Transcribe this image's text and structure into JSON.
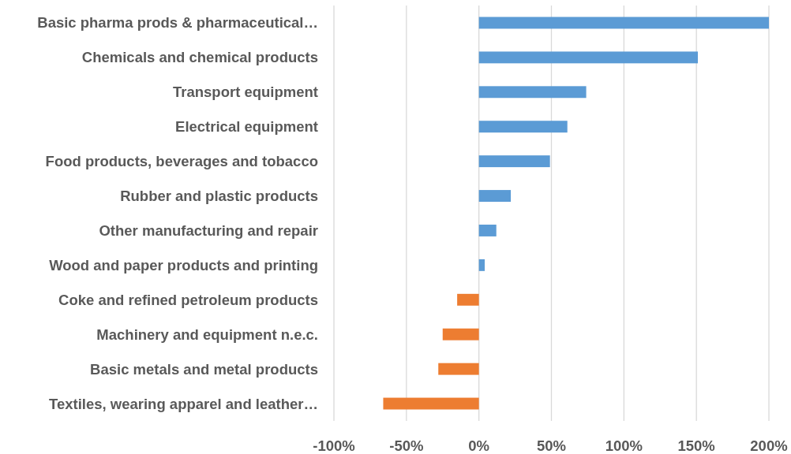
{
  "chart_data": {
    "type": "bar",
    "orientation": "horizontal",
    "categories": [
      "Basic pharma prods & pharmaceutical…",
      "Chemicals and chemical products",
      "Transport equipment",
      "Electrical equipment",
      "Food products, beverages and tobacco",
      "Rubber and plastic products",
      "Other manufacturing and repair",
      "Wood and paper products and printing",
      "Coke and refined petroleum products",
      "Machinery and equipment n.e.c.",
      "Basic metals and metal products",
      "Textiles, wearing apparel and leather…"
    ],
    "values": [
      200,
      151,
      74,
      61,
      49,
      22,
      12,
      4,
      -15,
      -25,
      -28,
      -66
    ],
    "colors": [
      "#5b9bd5",
      "#5b9bd5",
      "#5b9bd5",
      "#5b9bd5",
      "#5b9bd5",
      "#5b9bd5",
      "#5b9bd5",
      "#5b9bd5",
      "#ed7d31",
      "#ed7d31",
      "#ed7d31",
      "#ed7d31"
    ],
    "xlim": [
      -100,
      200
    ],
    "xticks": [
      {
        "value": -100,
        "label": "-100%"
      },
      {
        "value": -50,
        "label": "-50%"
      },
      {
        "value": 0,
        "label": "0%"
      },
      {
        "value": 50,
        "label": "50%"
      },
      {
        "value": 100,
        "label": "100%"
      },
      {
        "value": 150,
        "label": "150%"
      },
      {
        "value": 200,
        "label": "200%"
      }
    ],
    "grid": "x"
  }
}
